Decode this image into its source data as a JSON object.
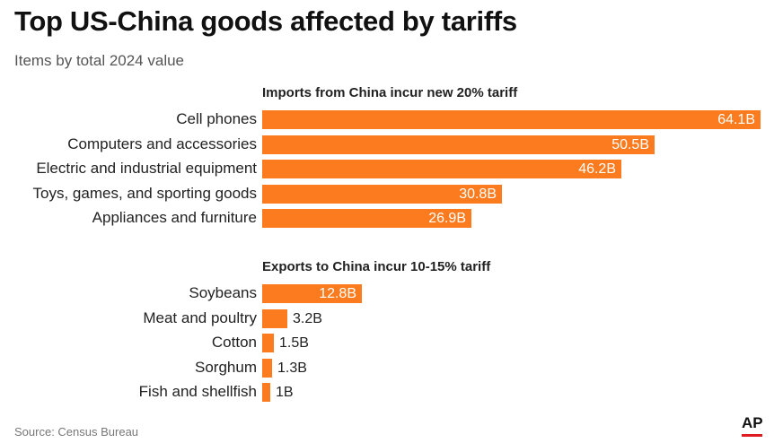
{
  "title": "Top US-China goods affected by tariffs",
  "subtitle": "Items by total 2024 value",
  "source": "Source: Census Bureau",
  "logo": "AP",
  "colors": {
    "bar": "#fb7b1e",
    "logo_rule": "#e01b22"
  },
  "chart_data": [
    {
      "type": "bar",
      "orientation": "horizontal",
      "title": "Imports from China incur new 20% tariff",
      "unit": "billion USD",
      "categories": [
        "Cell phones",
        "Computers and accessories",
        "Electric and industrial equipment",
        "Toys, games, and sporting goods",
        "Appliances and furniture"
      ],
      "values": [
        64.1,
        50.5,
        46.2,
        30.8,
        26.9
      ],
      "labels": [
        "64.1B",
        "50.5B",
        "46.2B",
        "30.8B",
        "26.9B"
      ],
      "xlim": [
        0,
        64.1
      ],
      "grid": false
    },
    {
      "type": "bar",
      "orientation": "horizontal",
      "title": "Exports to China incur 10-15% tariff",
      "unit": "billion USD",
      "categories": [
        "Soybeans",
        "Meat and poultry",
        "Cotton",
        "Sorghum",
        "Fish and shellfish"
      ],
      "values": [
        12.8,
        3.2,
        1.5,
        1.3,
        1.0
      ],
      "labels": [
        "12.8B",
        "3.2B",
        "1.5B",
        "1.3B",
        "1B"
      ],
      "xlim": [
        0,
        64.1
      ],
      "grid": false
    }
  ]
}
